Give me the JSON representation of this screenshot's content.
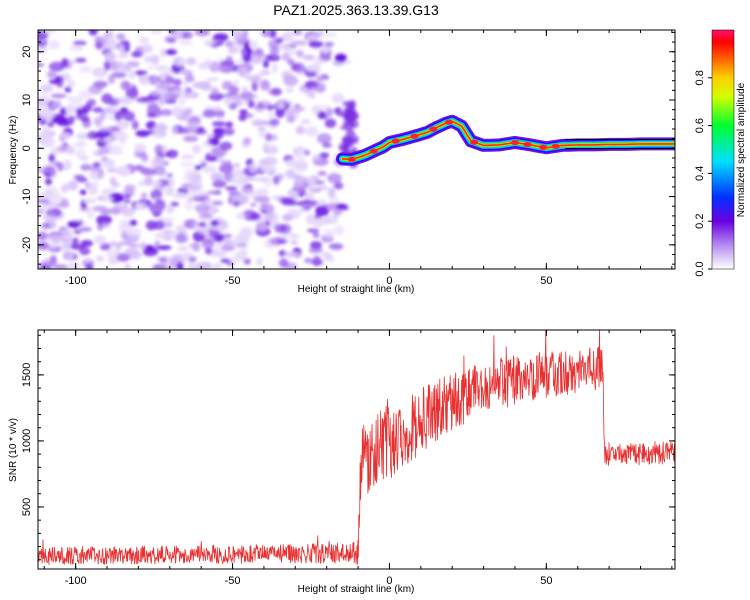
{
  "title": "PAZ1.2025.363.13.39.G13",
  "chart_data": [
    {
      "type": "heatmap",
      "name": "spectrogram",
      "xlabel": "Height of straight line (km)",
      "ylabel": "Frequency (Hz)",
      "xlim": [
        -112,
        91
      ],
      "ylim": [
        -25,
        24.5
      ],
      "xticks": [
        -100,
        -50,
        0,
        50
      ],
      "xtick_labels": [
        "-100",
        "-50",
        "0",
        "50"
      ],
      "yticks": [
        -20,
        -10,
        0,
        10,
        20
      ],
      "ytick_labels": [
        "-20",
        "-10",
        "0",
        "10",
        "20"
      ],
      "noise_region_x": [
        -112,
        -15
      ],
      "signal_ridge": {
        "x": [
          -15,
          -12,
          -8,
          -5,
          -2,
          0,
          4,
          8,
          12,
          15,
          18,
          20,
          23,
          26,
          30,
          35,
          40,
          45,
          50,
          55,
          60,
          65,
          70,
          75,
          80,
          85,
          91
        ],
        "y": [
          -2.2,
          -2.3,
          -1.5,
          -0.6,
          0.3,
          1.2,
          1.8,
          2.5,
          3.3,
          4.3,
          5.2,
          5.6,
          4.6,
          1.5,
          0.6,
          0.7,
          1.2,
          0.7,
          0.1,
          0.6,
          0.7,
          0.7,
          0.8,
          0.8,
          0.9,
          0.9,
          0.9
        ]
      },
      "peak_points_x": [
        -12,
        -5,
        2,
        8,
        14,
        19,
        27,
        40,
        44,
        49,
        53
      ]
    },
    {
      "type": "colorbar",
      "name": "amplitude-colorbar",
      "label": "Normalized spectral amplitude",
      "range": [
        0,
        1
      ],
      "ticks": [
        0,
        0.2,
        0.4,
        0.6,
        0.8
      ],
      "tick_labels": [
        "0.0",
        "0.2",
        "0.4",
        "0.6",
        "0.8"
      ],
      "colors": [
        "#ffffff",
        "#8a2be2",
        "#0000ff",
        "#00ffff",
        "#00ff00",
        "#ffff00",
        "#ff8000",
        "#ff0000",
        "#ff1493"
      ]
    },
    {
      "type": "line",
      "name": "snr",
      "xlabel": "Height of straight line (km)",
      "ylabel": "SNR (10 * v/v)",
      "xlim": [
        -112,
        91
      ],
      "ylim": [
        30,
        1840
      ],
      "xticks": [
        -100,
        -50,
        0,
        50
      ],
      "xtick_labels": [
        "-100",
        "-50",
        "0",
        "50"
      ],
      "yticks": [
        500,
        1000,
        1500
      ],
      "ytick_labels": [
        "500",
        "1000",
        "1500"
      ],
      "series": [
        {
          "name": "SNR",
          "color": "#e83030",
          "trend_x": [
            -112,
            -60,
            -12,
            -10,
            -9,
            0,
            10,
            20,
            30,
            40,
            50,
            60,
            68,
            68.5,
            80,
            91
          ],
          "trend_y": [
            130,
            140,
            150,
            160,
            850,
            1000,
            1150,
            1300,
            1400,
            1460,
            1500,
            1530,
            1560,
            900,
            900,
            930
          ],
          "noise_amplitude": [
            70,
            70,
            80,
            100,
            300,
            280,
            250,
            220,
            200,
            190,
            180,
            170,
            170,
            90,
            90,
            100
          ]
        }
      ]
    }
  ]
}
